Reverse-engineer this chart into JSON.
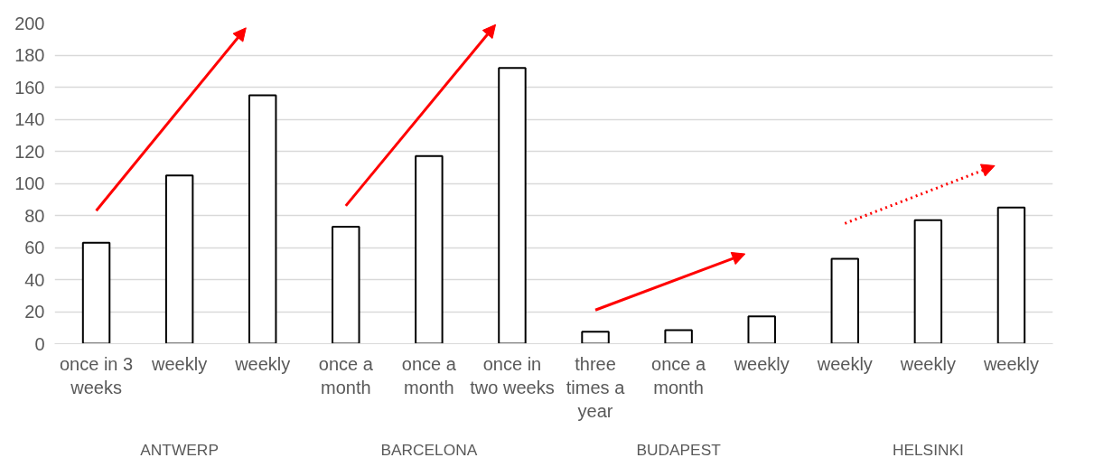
{
  "chart_data": {
    "type": "bar",
    "categories": [
      "once in 3 weeks",
      "weekly",
      "weekly",
      "once a month",
      "once a month",
      "once in two weeks",
      "three times a year",
      "once a month",
      "weekly",
      "weekly",
      "weekly",
      "weekly"
    ],
    "values": [
      63,
      105,
      155,
      73,
      117,
      172,
      7.5,
      8.5,
      17,
      53,
      77,
      85
    ],
    "color": "#ffffff",
    "annotations": [
      "ANTWERP",
      "BARCELONA",
      "BUDAPEST",
      "HELSINKI"
    ],
    "ylim": [
      0,
      200
    ],
    "yticks": [
      0,
      20,
      40,
      60,
      80,
      100,
      120,
      140,
      160,
      180,
      200
    ],
    "grid": "y"
  }
}
